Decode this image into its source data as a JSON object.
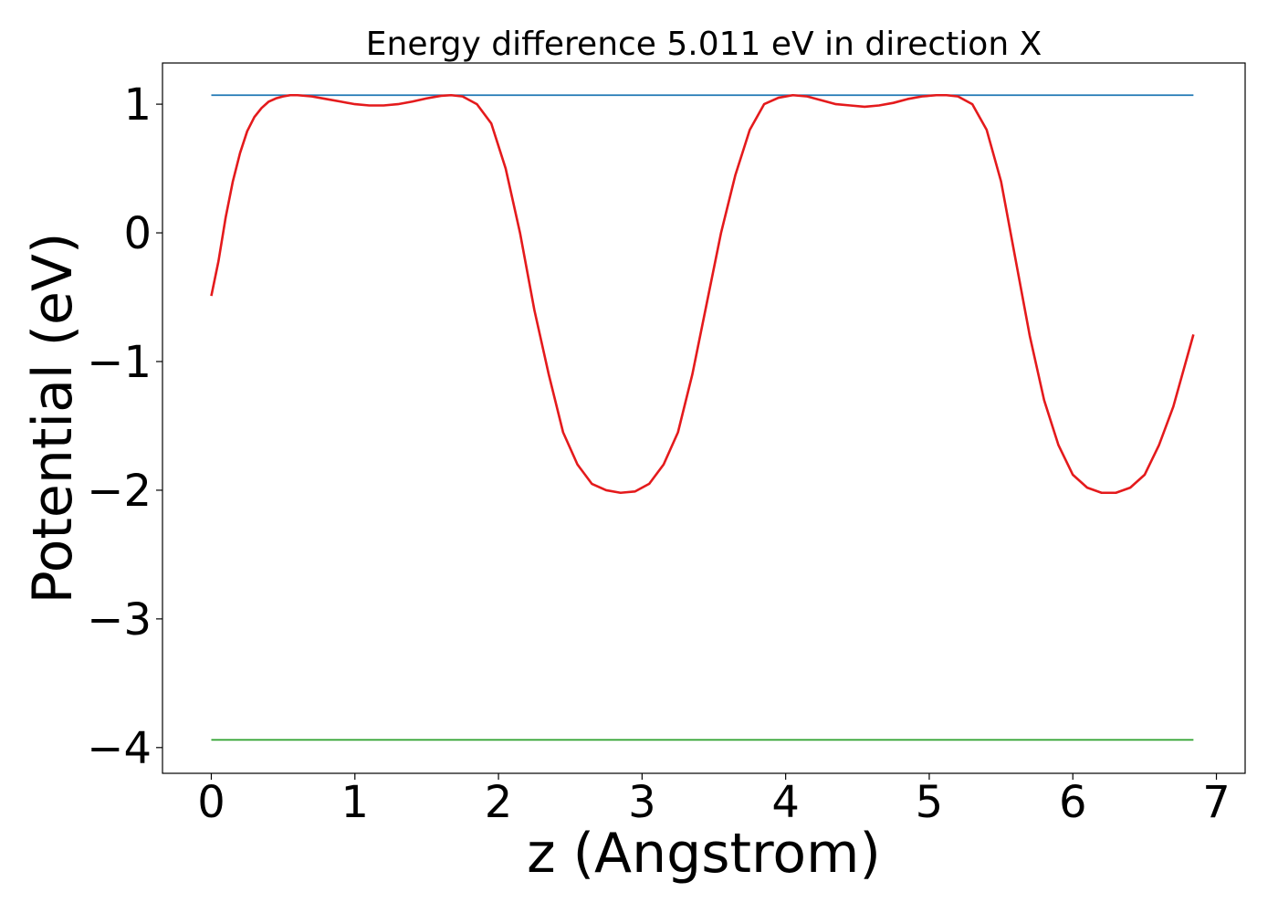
{
  "chart_data": {
    "type": "line",
    "title": "Energy difference 5.011 eV in direction X",
    "xlabel": "z (Angstrom)",
    "ylabel": "Potential (eV)",
    "xlim": [
      -0.34,
      7.2
    ],
    "ylim": [
      -4.2,
      1.32
    ],
    "xticks": [
      0,
      1,
      2,
      3,
      4,
      5,
      6,
      7
    ],
    "xtick_labels": [
      "0",
      "1",
      "2",
      "3",
      "4",
      "5",
      "6",
      "7"
    ],
    "yticks": [
      1,
      0,
      -1,
      -2,
      -3,
      -4
    ],
    "ytick_labels": [
      "1",
      "0",
      "−1",
      "−2",
      "−3",
      "−4"
    ],
    "grid": false,
    "series": [
      {
        "color": "#1f77b4",
        "x": [
          0,
          6.84
        ],
        "y": [
          1.07,
          1.07
        ]
      },
      {
        "color": "#2ca02c",
        "x": [
          0,
          6.84
        ],
        "y": [
          -3.94,
          -3.94
        ]
      },
      {
        "color": "#e41a1c",
        "x": [
          0,
          0.05,
          0.1,
          0.15,
          0.2,
          0.25,
          0.3,
          0.35,
          0.4,
          0.45,
          0.5,
          0.55,
          0.6,
          0.7,
          0.8,
          0.9,
          1.0,
          1.1,
          1.2,
          1.3,
          1.4,
          1.5,
          1.6,
          1.67,
          1.75,
          1.85,
          1.95,
          2.05,
          2.15,
          2.25,
          2.35,
          2.45,
          2.55,
          2.65,
          2.75,
          2.85,
          2.95,
          3.05,
          3.15,
          3.25,
          3.35,
          3.45,
          3.55,
          3.65,
          3.75,
          3.85,
          3.95,
          4.05,
          4.15,
          4.25,
          4.35,
          4.45,
          4.55,
          4.65,
          4.75,
          4.85,
          4.95,
          5.05,
          5.12,
          5.2,
          5.3,
          5.4,
          5.5,
          5.6,
          5.7,
          5.8,
          5.9,
          6.0,
          6.1,
          6.2,
          6.3,
          6.4,
          6.5,
          6.6,
          6.7,
          6.84
        ],
        "y": [
          -0.49,
          -0.22,
          0.12,
          0.4,
          0.62,
          0.79,
          0.9,
          0.97,
          1.02,
          1.045,
          1.06,
          1.07,
          1.07,
          1.06,
          1.04,
          1.02,
          1.0,
          0.99,
          0.99,
          1.0,
          1.02,
          1.045,
          1.065,
          1.07,
          1.06,
          1.0,
          0.85,
          0.5,
          0.0,
          -0.6,
          -1.1,
          -1.55,
          -1.8,
          -1.95,
          -2.0,
          -2.02,
          -2.01,
          -1.95,
          -1.8,
          -1.55,
          -1.1,
          -0.55,
          0.0,
          0.45,
          0.8,
          1.0,
          1.05,
          1.07,
          1.06,
          1.03,
          1.0,
          0.99,
          0.98,
          0.99,
          1.01,
          1.04,
          1.06,
          1.07,
          1.07,
          1.06,
          1.0,
          0.8,
          0.4,
          -0.2,
          -0.8,
          -1.3,
          -1.65,
          -1.88,
          -1.98,
          -2.02,
          -2.02,
          -1.98,
          -1.88,
          -1.65,
          -1.35,
          -0.79
        ]
      }
    ]
  }
}
